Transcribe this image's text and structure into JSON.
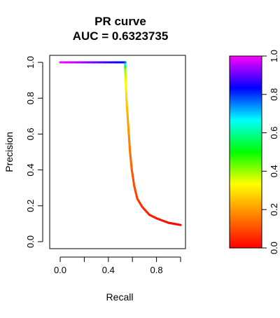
{
  "chart_data": {
    "type": "line",
    "title": "PR curve",
    "subtitle": "AUC = 0.6323735",
    "xlabel": "Recall",
    "ylabel": "Precision",
    "xlim": [
      0,
      1
    ],
    "ylim": [
      0,
      1
    ],
    "x_ticks": [
      0.0,
      0.4,
      0.8
    ],
    "x_tick_labels": [
      "0.0",
      "0.4",
      "0.8"
    ],
    "x_minor_ticks": [
      0.2,
      0.6,
      1.0
    ],
    "y_ticks": [
      0.0,
      0.2,
      0.4,
      0.6,
      0.8,
      1.0
    ],
    "y_tick_labels": [
      "0.0",
      "0.2",
      "0.4",
      "0.6",
      "0.8",
      "1.0"
    ],
    "grid": false,
    "series": [
      {
        "points": [
          {
            "x": 0.0,
            "y": 1.0,
            "t": 1.0
          },
          {
            "x": 0.54,
            "y": 1.0,
            "t": 0.82
          },
          {
            "x": 0.54,
            "y": 0.96,
            "t": 0.42
          },
          {
            "x": 0.545,
            "y": 0.89,
            "t": 0.34
          },
          {
            "x": 0.55,
            "y": 0.8,
            "t": 0.28
          },
          {
            "x": 0.56,
            "y": 0.7,
            "t": 0.23
          },
          {
            "x": 0.57,
            "y": 0.6,
            "t": 0.19
          },
          {
            "x": 0.58,
            "y": 0.5,
            "t": 0.15
          },
          {
            "x": 0.595,
            "y": 0.4,
            "t": 0.12
          },
          {
            "x": 0.615,
            "y": 0.31,
            "t": 0.1
          },
          {
            "x": 0.64,
            "y": 0.24,
            "t": 0.08
          },
          {
            "x": 0.68,
            "y": 0.195,
            "t": 0.06
          },
          {
            "x": 0.74,
            "y": 0.15,
            "t": 0.04
          },
          {
            "x": 0.8,
            "y": 0.13,
            "t": 0.03
          },
          {
            "x": 0.9,
            "y": 0.105,
            "t": 0.015
          },
          {
            "x": 1.0,
            "y": 0.093,
            "t": 0.0
          }
        ]
      }
    ],
    "colorbar": {
      "range": [
        0,
        1
      ],
      "ticks": [
        0.0,
        0.2,
        0.4,
        0.6,
        0.8,
        1.0
      ],
      "tick_labels": [
        "0.0",
        "0.2",
        "0.4",
        "0.6",
        "0.8",
        "1.0"
      ],
      "colors": [
        "#ff0000",
        "#ff8000",
        "#ffff00",
        "#00ff00",
        "#00ffff",
        "#0000ff",
        "#ff00ff"
      ],
      "placement": "right"
    }
  }
}
